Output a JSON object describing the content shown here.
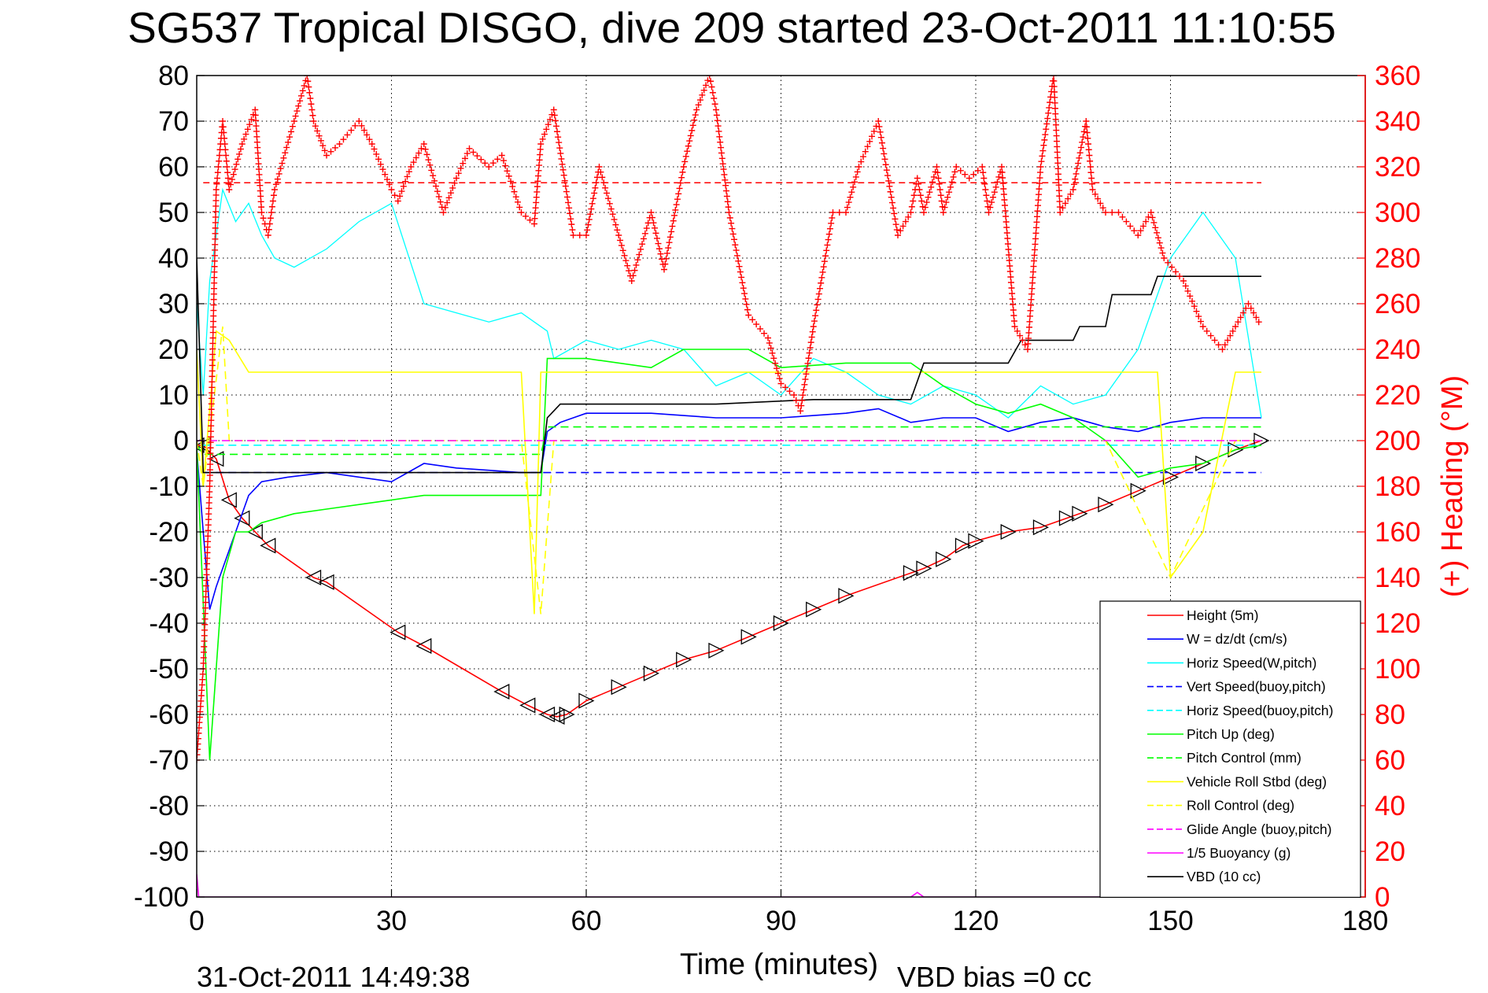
{
  "chart_data": {
    "type": "line",
    "title": "SG537 Tropical DISGO, dive 209 started 23-Oct-2011 11:10:55",
    "xlabel": "Time (minutes)",
    "ylabel_right": "(+) Heading (°M)",
    "footer_left": "31-Oct-2011 14:49:38",
    "footer_right": "VBD bias =0 cc",
    "xlim": [
      0,
      180
    ],
    "ylim": [
      -100,
      80
    ],
    "ylim_right": [
      0,
      360
    ],
    "x_ticks": [
      0,
      30,
      60,
      90,
      120,
      150,
      180
    ],
    "y_ticks": [
      80,
      70,
      60,
      50,
      40,
      30,
      20,
      10,
      0,
      -10,
      -20,
      -30,
      -40,
      -50,
      -60,
      -70,
      -80,
      -90,
      -100
    ],
    "y_ticks_right": [
      360,
      340,
      320,
      300,
      280,
      260,
      240,
      220,
      200,
      180,
      160,
      140,
      120,
      100,
      80,
      60,
      40,
      20,
      0
    ],
    "grid": true,
    "legend_position": "bottom-right",
    "reference_lines": {
      "heading_target_right_axis": 313,
      "vert_speed_buoy_pitch": -7
    },
    "series": [
      {
        "name": "Height (5m)",
        "color": "#ff0000",
        "style": "solid",
        "marker": "triangle",
        "x": [
          0,
          1,
          3,
          5,
          7,
          9,
          11,
          18,
          20,
          31,
          35,
          47,
          51,
          54,
          55.5,
          57,
          60,
          65,
          70,
          75,
          80,
          85,
          90,
          95,
          100,
          110,
          112,
          115,
          118,
          120,
          125,
          130,
          134,
          136,
          140,
          145,
          150,
          155,
          160,
          164
        ],
        "y": [
          -1,
          -1,
          -4,
          -13,
          -17,
          -20,
          -23,
          -30,
          -31,
          -42,
          -45,
          -55,
          -58,
          -60,
          -60.5,
          -60,
          -57,
          -54,
          -51,
          -48,
          -46,
          -43,
          -40,
          -37,
          -34,
          -29,
          -28,
          -26,
          -23,
          -22,
          -20,
          -19,
          -17,
          -16,
          -14,
          -11,
          -8,
          -5,
          -2,
          0
        ]
      },
      {
        "name": "W = dz/dt (cm/s)",
        "color": "#0000ff",
        "style": "solid",
        "x": [
          0,
          1,
          2,
          3,
          4,
          6,
          8,
          10,
          14,
          20,
          30,
          35,
          40,
          50,
          53,
          54,
          56,
          60,
          70,
          80,
          90,
          100,
          105,
          110,
          115,
          120,
          125,
          130,
          135,
          140,
          145,
          150,
          155,
          160,
          164
        ],
        "y": [
          -2,
          -20,
          -37,
          -32,
          -28,
          -20,
          -12,
          -9,
          -8,
          -7,
          -9,
          -5,
          -6,
          -7,
          -7,
          2,
          4,
          6,
          6,
          5,
          5,
          6,
          7,
          4,
          5,
          5,
          2,
          4,
          5,
          3,
          2,
          4,
          5,
          5,
          5
        ]
      },
      {
        "name": "Horiz Speed(W,pitch)",
        "color": "#00ffff",
        "style": "solid",
        "x": [
          0,
          1,
          2,
          4,
          6,
          8,
          10,
          12,
          15,
          20,
          25,
          30,
          35,
          40,
          45,
          50,
          54,
          55,
          60,
          65,
          70,
          75,
          80,
          85,
          90,
          95,
          100,
          105,
          110,
          115,
          120,
          125,
          130,
          135,
          140,
          145,
          150,
          155,
          160,
          164
        ],
        "y": [
          30,
          10,
          35,
          55,
          48,
          52,
          45,
          40,
          38,
          42,
          48,
          52,
          30,
          28,
          26,
          28,
          24,
          18,
          22,
          20,
          22,
          20,
          12,
          15,
          10,
          18,
          15,
          10,
          8,
          12,
          10,
          5,
          12,
          8,
          10,
          20,
          40,
          50,
          40,
          5
        ]
      },
      {
        "name": "Vert Speed(buoy,pitch)",
        "color": "#0000ff",
        "style": "dashed",
        "x": [
          1,
          164
        ],
        "y": [
          -7,
          -7
        ]
      },
      {
        "name": "Horiz Speed(buoy,pitch)",
        "color": "#00ffff",
        "style": "dashed",
        "x": [
          1,
          164
        ],
        "y": [
          -1,
          -1
        ]
      },
      {
        "name": "Pitch Up (deg)",
        "color": "#00ff00",
        "style": "solid",
        "x": [
          0,
          2,
          4,
          6,
          8,
          10,
          15,
          20,
          30,
          35,
          40,
          50,
          53,
          54,
          55,
          60,
          70,
          75,
          85,
          90,
          100,
          110,
          115,
          120,
          125,
          130,
          135,
          140,
          145,
          150,
          155,
          160,
          164
        ],
        "y": [
          -1,
          -70,
          -30,
          -20,
          -20,
          -18,
          -16,
          -15,
          -13,
          -12,
          -12,
          -12,
          -12,
          18,
          18,
          18,
          16,
          20,
          20,
          16,
          17,
          17,
          12,
          8,
          6,
          8,
          5,
          0,
          -8,
          -6,
          -5,
          -2,
          -1
        ]
      },
      {
        "name": "Pitch Control (mm)",
        "color": "#00ff00",
        "style": "dashed",
        "x": [
          0,
          1,
          2,
          5,
          50,
          53,
          54,
          164
        ],
        "y": [
          -1,
          -3,
          -3,
          -3,
          -3,
          -3,
          3,
          3
        ]
      },
      {
        "name": "Vehicle Roll Stbd (deg)",
        "color": "#ffff00",
        "style": "solid",
        "x": [
          0,
          1,
          3,
          5,
          8,
          10,
          20,
          30,
          40,
          50,
          52,
          53,
          55,
          60,
          80,
          100,
          118,
          120,
          130,
          140,
          148,
          150,
          155,
          160,
          164
        ],
        "y": [
          20,
          -10,
          24,
          22,
          15,
          15,
          15,
          15,
          15,
          15,
          -38,
          15,
          15,
          15,
          15,
          15,
          15,
          15,
          15,
          15,
          15,
          -30,
          -20,
          15,
          15
        ]
      },
      {
        "name": "Roll Control (deg)",
        "color": "#ffff00",
        "style": "dashed",
        "x": [
          0,
          1,
          4,
          5,
          10,
          20,
          30,
          40,
          50,
          53,
          55,
          60,
          80,
          100,
          120,
          140,
          150,
          160,
          164
        ],
        "y": [
          0,
          -10,
          25,
          0,
          0,
          0,
          0,
          0,
          0,
          -38,
          0,
          0,
          0,
          0,
          0,
          0,
          -30,
          0,
          0
        ]
      },
      {
        "name": "Glide Angle (buoy,pitch)",
        "color": "#ff00ff",
        "style": "dashed",
        "x": [
          0,
          1,
          164
        ],
        "y": [
          0,
          0,
          0
        ]
      },
      {
        "name": "1/5 Buoyancy (g)",
        "color": "#ff00ff",
        "style": "solid",
        "x": [
          0,
          0.3,
          0.8,
          110,
          111,
          112,
          140,
          141,
          142
        ],
        "y": [
          -95,
          -100,
          -100,
          -100,
          -99,
          -100,
          -100,
          -99,
          -100
        ]
      },
      {
        "name": "VBD (10 cc)",
        "color": "#000000",
        "style": "solid",
        "x": [
          0,
          1,
          2,
          53,
          54,
          56,
          60,
          80,
          95,
          110,
          112,
          125,
          127,
          128,
          135,
          136,
          140,
          141,
          147,
          148,
          164
        ],
        "y": [
          40,
          -7,
          -7,
          -7,
          5,
          8,
          8,
          8,
          9,
          9,
          17,
          17,
          22,
          22,
          22,
          25,
          25,
          32,
          32,
          36,
          36
        ]
      },
      {
        "name": "Heading",
        "color": "#ff0000",
        "style": "marker",
        "marker": "plus",
        "axis": "right",
        "x": [
          0,
          1,
          2,
          3,
          4,
          5,
          7,
          9,
          10,
          11,
          12,
          15,
          17,
          18,
          20,
          22,
          25,
          27,
          30,
          31,
          33,
          35,
          38,
          40,
          42,
          45,
          47,
          50,
          52,
          53,
          55,
          58,
          60,
          62,
          65,
          67,
          70,
          72,
          75,
          77,
          79,
          80,
          82,
          85,
          88,
          90,
          92,
          93,
          95,
          98,
          100,
          102,
          105,
          108,
          110,
          111,
          112,
          114,
          115,
          117,
          119,
          121,
          122,
          124,
          126,
          128,
          130,
          132,
          133,
          135,
          137,
          138,
          140,
          142,
          145,
          147,
          149,
          152,
          155,
          158,
          160,
          162,
          164
        ],
        "y": [
          60,
          100,
          180,
          310,
          340,
          310,
          330,
          345,
          300,
          290,
          310,
          340,
          360,
          340,
          325,
          330,
          340,
          330,
          310,
          305,
          320,
          330,
          300,
          315,
          328,
          320,
          325,
          300,
          295,
          330,
          345,
          290,
          290,
          320,
          290,
          270,
          300,
          275,
          320,
          345,
          360,
          345,
          300,
          255,
          245,
          225,
          220,
          213,
          250,
          300,
          300,
          320,
          340,
          290,
          300,
          315,
          300,
          320,
          300,
          320,
          315,
          320,
          300,
          320,
          250,
          240,
          320,
          360,
          300,
          310,
          340,
          310,
          300,
          300,
          290,
          300,
          280,
          270,
          250,
          240,
          250,
          260,
          250
        ]
      }
    ]
  }
}
